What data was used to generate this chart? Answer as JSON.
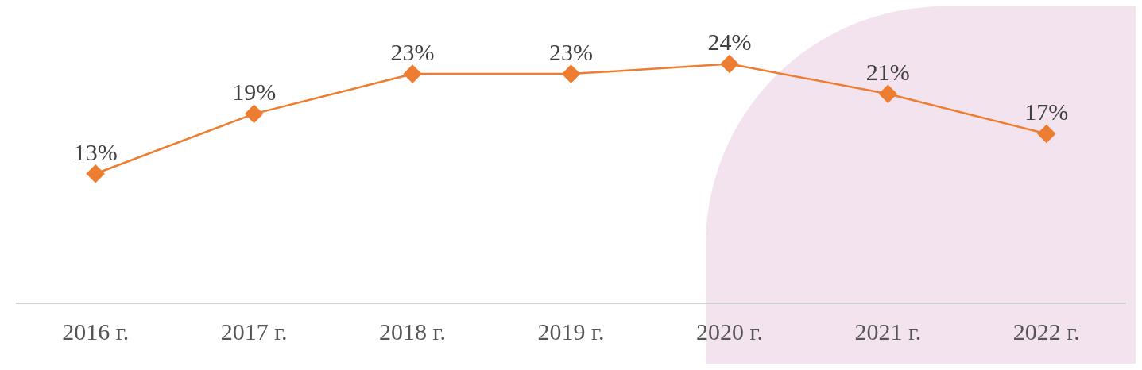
{
  "chart_data": {
    "type": "line",
    "categories": [
      "2016 г.",
      "2017 г.",
      "2018 г.",
      "2019 г.",
      "2020 г.",
      "2021 г.",
      "2022 г."
    ],
    "series": [
      {
        "color": "#ed7d31",
        "values": [
          13,
          19,
          23,
          23,
          24,
          21,
          17
        ],
        "value_labels": [
          "13%",
          "19%",
          "23%",
          "23%",
          "24%",
          "21%",
          "17%"
        ]
      }
    ],
    "marker": "diamond",
    "line_style": "solid",
    "grid": false,
    "legend": false
  }
}
